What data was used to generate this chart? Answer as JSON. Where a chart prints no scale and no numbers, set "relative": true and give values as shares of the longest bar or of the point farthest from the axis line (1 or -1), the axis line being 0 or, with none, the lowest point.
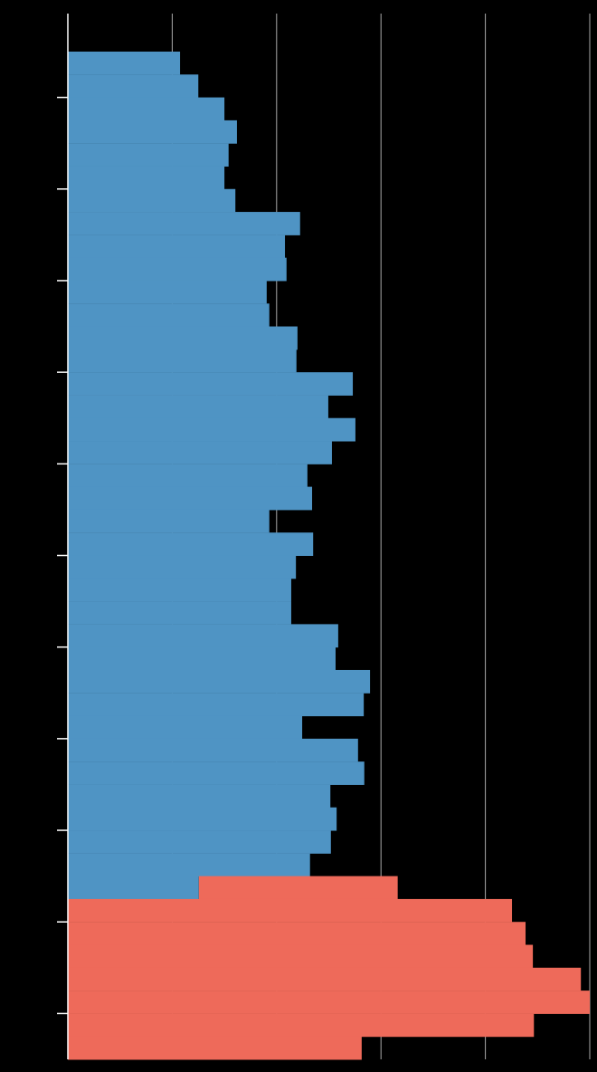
{
  "chart_data": {
    "type": "bar",
    "orientation": "horizontal",
    "stacked": true,
    "relative": true,
    "grid": "x",
    "categories": [
      null,
      null,
      null,
      null,
      null,
      null,
      null,
      null,
      null,
      null,
      null,
      null,
      null,
      null,
      null,
      null,
      null,
      null,
      null,
      null,
      null,
      null,
      null,
      null,
      null,
      null,
      null,
      null,
      null,
      null,
      null,
      null,
      null,
      null,
      null,
      null,
      null,
      null,
      null,
      null,
      null,
      null,
      null,
      null
    ],
    "series": [
      {
        "color": "#4f94c4",
        "values": [
          0.215,
          0.25,
          0.3,
          0.324,
          0.308,
          0.3,
          0.321,
          0.445,
          0.416,
          0.419,
          0.381,
          0.386,
          0.44,
          0.438,
          0.546,
          0.499,
          0.551,
          0.506,
          0.459,
          0.468,
          0.386,
          0.47,
          0.437,
          0.428,
          0.428,
          0.518,
          0.513,
          0.579,
          0.567,
          0.449,
          0.556,
          0.568,
          0.503,
          0.515,
          0.504,
          0.464,
          0.251,
          null,
          null,
          null,
          null,
          null,
          null,
          null
        ]
      },
      {
        "color": "#ee6a5a",
        "values": [
          null,
          null,
          null,
          null,
          null,
          null,
          null,
          null,
          null,
          null,
          null,
          null,
          null,
          null,
          null,
          null,
          null,
          null,
          null,
          null,
          null,
          null,
          null,
          null,
          null,
          null,
          null,
          null,
          null,
          null,
          null,
          null,
          null,
          null,
          null,
          null,
          0.381,
          0.851,
          0.877,
          0.891,
          0.983,
          1,
          0.893,
          0.563
        ]
      }
    ]
  }
}
